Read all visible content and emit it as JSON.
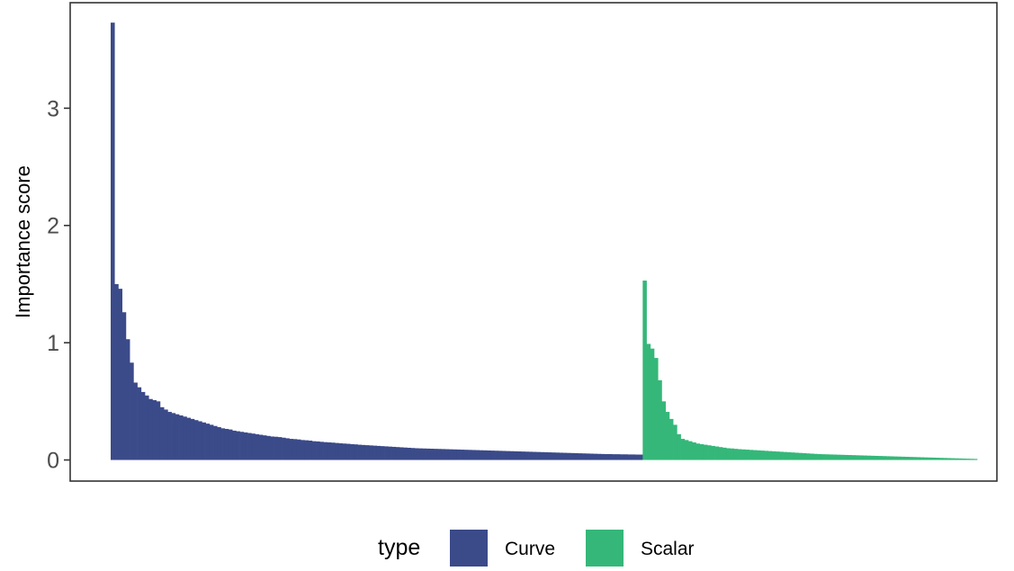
{
  "chart_data": {
    "type": "bar",
    "title": "",
    "xlabel": "",
    "ylabel": "Importance score",
    "ylim": [
      -0.18,
      3.9
    ],
    "yticks": [
      0,
      1,
      2,
      3
    ],
    "grid": false,
    "legend_position": "bottom",
    "legend": {
      "title": "type",
      "entries": [
        {
          "label": "Curve",
          "color": "#3b4a89"
        },
        {
          "label": "Scalar",
          "color": "#35b779"
        }
      ]
    },
    "series": [
      {
        "name": "Curve",
        "color": "#3b4a89",
        "values": [
          3.73,
          1.5,
          1.46,
          1.26,
          1.03,
          0.83,
          0.66,
          0.62,
          0.58,
          0.55,
          0.52,
          0.51,
          0.5,
          0.45,
          0.43,
          0.41,
          0.4,
          0.39,
          0.38,
          0.37,
          0.36,
          0.35,
          0.34,
          0.33,
          0.32,
          0.31,
          0.3,
          0.29,
          0.28,
          0.27,
          0.265,
          0.26,
          0.25,
          0.245,
          0.24,
          0.235,
          0.23,
          0.225,
          0.22,
          0.215,
          0.21,
          0.205,
          0.2,
          0.198,
          0.195,
          0.19,
          0.185,
          0.18,
          0.178,
          0.175,
          0.17,
          0.168,
          0.165,
          0.16,
          0.158,
          0.155,
          0.152,
          0.15,
          0.148,
          0.145,
          0.142,
          0.14,
          0.138,
          0.135,
          0.133,
          0.13,
          0.128,
          0.126,
          0.124,
          0.122,
          0.12,
          0.118,
          0.116,
          0.114,
          0.112,
          0.11,
          0.108,
          0.106,
          0.104,
          0.102,
          0.1,
          0.099,
          0.098,
          0.097,
          0.096,
          0.095,
          0.094,
          0.093,
          0.092,
          0.091,
          0.09,
          0.089,
          0.088,
          0.087,
          0.086,
          0.085,
          0.084,
          0.083,
          0.082,
          0.081,
          0.08,
          0.079,
          0.078,
          0.077,
          0.076,
          0.075,
          0.074,
          0.073,
          0.072,
          0.071,
          0.07,
          0.069,
          0.068,
          0.067,
          0.066,
          0.065,
          0.064,
          0.063,
          0.062,
          0.061,
          0.06,
          0.059,
          0.058,
          0.057,
          0.056,
          0.055,
          0.054,
          0.053,
          0.052,
          0.051,
          0.05,
          0.05,
          0.049,
          0.049,
          0.048,
          0.048,
          0.047,
          0.047,
          0.046,
          0.046
        ]
      },
      {
        "name": "Scalar",
        "color": "#35b779",
        "values": [
          1.53,
          0.99,
          0.95,
          0.87,
          0.68,
          0.5,
          0.41,
          0.35,
          0.3,
          0.22,
          0.18,
          0.17,
          0.16,
          0.15,
          0.14,
          0.135,
          0.13,
          0.125,
          0.12,
          0.115,
          0.11,
          0.105,
          0.1,
          0.098,
          0.095,
          0.092,
          0.09,
          0.088,
          0.086,
          0.084,
          0.082,
          0.08,
          0.078,
          0.076,
          0.074,
          0.072,
          0.07,
          0.068,
          0.066,
          0.064,
          0.062,
          0.06,
          0.058,
          0.056,
          0.054,
          0.052,
          0.05,
          0.049,
          0.048,
          0.047,
          0.046,
          0.045,
          0.044,
          0.043,
          0.042,
          0.041,
          0.04,
          0.039,
          0.038,
          0.037,
          0.036,
          0.035,
          0.034,
          0.033,
          0.032,
          0.031,
          0.03,
          0.029,
          0.028,
          0.027,
          0.026,
          0.025,
          0.024,
          0.023,
          0.022,
          0.021,
          0.02,
          0.019,
          0.018,
          0.017,
          0.016,
          0.015,
          0.014,
          0.013,
          0.012,
          0.011,
          0.01,
          0.009
        ]
      }
    ]
  }
}
